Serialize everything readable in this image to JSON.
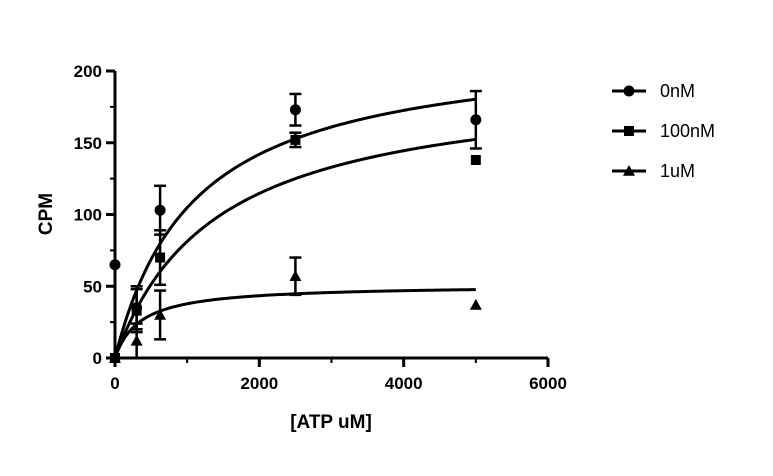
{
  "chart_data": {
    "type": "scatter",
    "xlabel": "[ATP uM]",
    "ylabel": "CPM",
    "xlim": [
      0,
      6000
    ],
    "ylim": [
      0,
      200
    ],
    "xticks": [
      0,
      2000,
      4000,
      6000
    ],
    "yticks": [
      0,
      50,
      100,
      150,
      200
    ],
    "xtick_labels": [
      "0",
      "2000",
      "4000",
      "6000"
    ],
    "ytick_labels": [
      "0",
      "50",
      "100",
      "150",
      "200"
    ],
    "grid": false,
    "legend_position": "right",
    "series": [
      {
        "name": "0nM",
        "marker": "circle",
        "color": "#000000",
        "points": [
          {
            "x": 0,
            "y": 65
          },
          {
            "x": 300,
            "y": 35,
            "err": 15
          },
          {
            "x": 625,
            "y": 103,
            "err": 17
          },
          {
            "x": 2500,
            "y": 173,
            "err": 11
          },
          {
            "x": 5000,
            "y": 166,
            "err": 20
          }
        ],
        "fit": {
          "model": "michaelis-menten",
          "vmax": 220,
          "km": 1100
        }
      },
      {
        "name": "100nM",
        "marker": "square",
        "color": "#000000",
        "points": [
          {
            "x": 0,
            "y": 0
          },
          {
            "x": 300,
            "y": 33,
            "err": 15
          },
          {
            "x": 625,
            "y": 70,
            "err": 19
          },
          {
            "x": 2500,
            "y": 152,
            "err": 5
          },
          {
            "x": 5000,
            "y": 138
          }
        ],
        "fit": {
          "model": "michaelis-menten",
          "vmax": 195,
          "km": 1400
        }
      },
      {
        "name": "1uM",
        "marker": "triangle",
        "color": "#000000",
        "points": [
          {
            "x": 0,
            "y": 0
          },
          {
            "x": 300,
            "y": 12,
            "err": 12
          },
          {
            "x": 625,
            "y": 30,
            "err": 17
          },
          {
            "x": 2500,
            "y": 57,
            "err": 13
          },
          {
            "x": 5000,
            "y": 37
          }
        ],
        "fit": {
          "model": "michaelis-menten",
          "vmax": 51,
          "km": 350
        }
      }
    ]
  }
}
